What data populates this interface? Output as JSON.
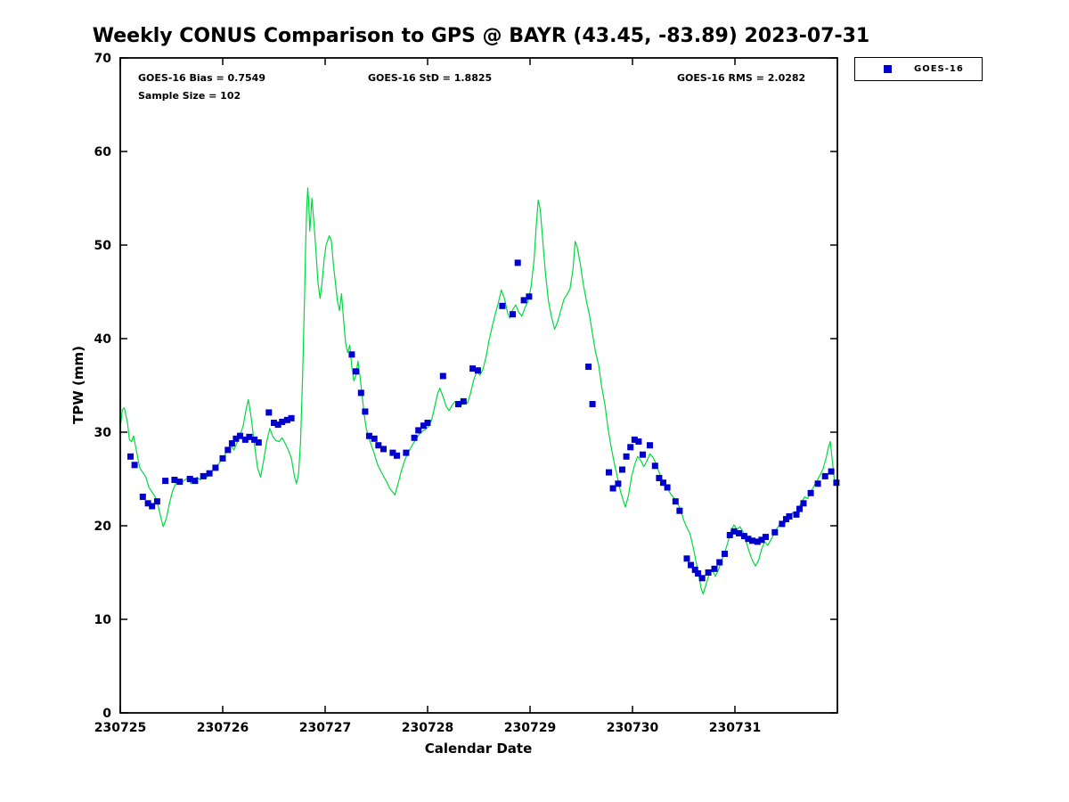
{
  "title": "Weekly CONUS Comparison to GPS @ BAYR (43.45, -83.89) 2023-07-31",
  "stats": {
    "bias": "GOES-16 Bias = 0.7549",
    "std": "GOES-16 StD = 1.8825",
    "rms": "GOES-16 RMS = 2.0282",
    "sample_size": "Sample Size = 102"
  },
  "legend": {
    "entries": [
      {
        "label": "GOES-16",
        "marker": "square",
        "color": "#0000cc"
      }
    ]
  },
  "chart_data": {
    "type": "line",
    "title": "Weekly CONUS Comparison to GPS @ BAYR (43.45, -83.89) 2023-07-31",
    "xlabel": "Calendar Date",
    "ylabel": "TPW (mm)",
    "ylim": [
      0,
      70
    ],
    "yticks": [
      0,
      10,
      20,
      30,
      40,
      50,
      60,
      70
    ],
    "xlim_days": [
      0,
      7
    ],
    "xtick_days": [
      0,
      1,
      2,
      3,
      4,
      5,
      6
    ],
    "xtick_labels": [
      "230725",
      "230726",
      "230727",
      "230728",
      "230729",
      "230730",
      "230731"
    ],
    "grid": false,
    "legend_position": "outside-top-right",
    "series": [
      {
        "name": "GPS",
        "type": "line",
        "color": "#00d940",
        "x_days": [
          0.0,
          0.02,
          0.04,
          0.07,
          0.09,
          0.11,
          0.13,
          0.16,
          0.19,
          0.22,
          0.25,
          0.28,
          0.31,
          0.34,
          0.37,
          0.4,
          0.42,
          0.45,
          0.48,
          0.51,
          0.54,
          0.57,
          0.6,
          0.63,
          0.66,
          0.69,
          0.72,
          0.75,
          0.78,
          0.81,
          0.84,
          0.87,
          0.9,
          0.93,
          0.96,
          0.99,
          1.02,
          1.05,
          1.08,
          1.11,
          1.14,
          1.17,
          1.2,
          1.23,
          1.25,
          1.28,
          1.31,
          1.34,
          1.37,
          1.4,
          1.43,
          1.46,
          1.49,
          1.52,
          1.55,
          1.58,
          1.61,
          1.64,
          1.67,
          1.7,
          1.72,
          1.74,
          1.76,
          1.78,
          1.8,
          1.81,
          1.82,
          1.83,
          1.84,
          1.85,
          1.86,
          1.87,
          1.89,
          1.91,
          1.93,
          1.95,
          1.97,
          1.99,
          2.01,
          2.04,
          2.06,
          2.08,
          2.1,
          2.12,
          2.14,
          2.16,
          2.18,
          2.2,
          2.22,
          2.24,
          2.26,
          2.28,
          2.3,
          2.32,
          2.34,
          2.36,
          2.38,
          2.4,
          2.42,
          2.45,
          2.48,
          2.51,
          2.54,
          2.57,
          2.6,
          2.63,
          2.66,
          2.68,
          2.71,
          2.74,
          2.77,
          2.8,
          2.83,
          2.86,
          2.89,
          2.92,
          2.95,
          2.98,
          3.01,
          3.04,
          3.07,
          3.1,
          3.12,
          3.15,
          3.18,
          3.21,
          3.24,
          3.27,
          3.3,
          3.33,
          3.36,
          3.39,
          3.42,
          3.45,
          3.48,
          3.51,
          3.54,
          3.57,
          3.6,
          3.63,
          3.66,
          3.69,
          3.72,
          3.75,
          3.78,
          3.8,
          3.83,
          3.86,
          3.89,
          3.92,
          3.95,
          3.98,
          4.01,
          4.04,
          4.06,
          4.08,
          4.1,
          4.12,
          4.15,
          4.18,
          4.21,
          4.24,
          4.27,
          4.3,
          4.33,
          4.36,
          4.39,
          4.42,
          4.44,
          4.46,
          4.49,
          4.52,
          4.55,
          4.58,
          4.61,
          4.64,
          4.67,
          4.7,
          4.73,
          4.76,
          4.79,
          4.82,
          4.85,
          4.88,
          4.91,
          4.93,
          4.96,
          4.99,
          5.02,
          5.05,
          5.08,
          5.11,
          5.14,
          5.17,
          5.2,
          5.23,
          5.26,
          5.29,
          5.32,
          5.35,
          5.38,
          5.41,
          5.44,
          5.47,
          5.5,
          5.53,
          5.56,
          5.59,
          5.62,
          5.65,
          5.67,
          5.69,
          5.72,
          5.75,
          5.78,
          5.81,
          5.84,
          5.87,
          5.9,
          5.93,
          5.96,
          5.99,
          6.02,
          6.05,
          6.08,
          6.11,
          6.14,
          6.17,
          6.2,
          6.23,
          6.26,
          6.29,
          6.32,
          6.35,
          6.38,
          6.41,
          6.44,
          6.47,
          6.5,
          6.53,
          6.56,
          6.59,
          6.62,
          6.65,
          6.68,
          6.71,
          6.74,
          6.77,
          6.8,
          6.83,
          6.86,
          6.89,
          6.91,
          6.93,
          6.95,
          6.97,
          6.99,
          7.0
        ],
        "y": [
          30.5,
          32.4,
          32.6,
          31.0,
          29.2,
          29.0,
          29.6,
          27.9,
          26.2,
          25.7,
          25.2,
          24.1,
          23.6,
          23.1,
          22.1,
          20.7,
          19.9,
          20.8,
          22.4,
          23.7,
          24.5,
          24.9,
          24.6,
          24.9,
          25.1,
          24.5,
          24.9,
          25.2,
          24.9,
          25.3,
          25.1,
          25.6,
          25.9,
          26.3,
          26.6,
          27.1,
          27.5,
          28.3,
          28.6,
          28.1,
          28.9,
          29.7,
          30.7,
          32.5,
          33.5,
          31.4,
          28.7,
          26.2,
          25.2,
          27.0,
          29.0,
          30.4,
          29.5,
          29.1,
          29.0,
          29.4,
          28.8,
          28.1,
          27.2,
          25.3,
          24.5,
          25.5,
          29.0,
          36.0,
          45.0,
          50.0,
          54.0,
          56.1,
          54.5,
          51.5,
          53.0,
          55.0,
          52.5,
          49.5,
          46.0,
          44.3,
          46.0,
          48.5,
          50.0,
          51.0,
          50.5,
          48.0,
          46.0,
          44.0,
          43.0,
          44.8,
          42.0,
          39.5,
          38.5,
          39.3,
          37.0,
          35.5,
          36.0,
          37.6,
          36.0,
          34.0,
          32.0,
          30.5,
          29.6,
          28.6,
          27.7,
          26.6,
          25.9,
          25.3,
          24.7,
          24.0,
          23.6,
          23.3,
          24.4,
          25.7,
          26.8,
          27.6,
          28.2,
          28.8,
          29.3,
          29.8,
          30.1,
          30.3,
          30.6,
          31.3,
          32.8,
          34.2,
          34.7,
          33.8,
          32.8,
          32.3,
          32.9,
          33.3,
          32.7,
          32.9,
          33.4,
          33.1,
          34.2,
          35.6,
          36.5,
          36.1,
          36.7,
          38.0,
          39.8,
          41.3,
          42.6,
          43.8,
          45.2,
          44.3,
          42.8,
          42.2,
          43.1,
          43.6,
          42.8,
          42.4,
          43.3,
          44.0,
          45.5,
          48.5,
          52.0,
          54.8,
          53.8,
          51.0,
          47.0,
          44.0,
          42.3,
          41.0,
          41.8,
          43.0,
          44.2,
          44.7,
          45.3,
          47.5,
          50.4,
          49.8,
          48.0,
          45.8,
          44.0,
          42.5,
          40.5,
          38.5,
          37.2,
          34.8,
          33.0,
          30.5,
          28.5,
          26.8,
          25.3,
          23.8,
          22.7,
          22.0,
          23.2,
          25.2,
          26.5,
          27.4,
          27.0,
          26.3,
          26.9,
          27.7,
          27.3,
          26.6,
          25.7,
          24.9,
          24.3,
          23.8,
          23.3,
          22.9,
          22.4,
          21.7,
          20.6,
          19.8,
          19.2,
          17.8,
          16.2,
          14.5,
          13.3,
          12.7,
          13.8,
          14.9,
          15.2,
          14.6,
          15.3,
          16.3,
          17.1,
          18.2,
          19.4,
          20.1,
          19.6,
          19.9,
          19.3,
          18.3,
          17.2,
          16.3,
          15.7,
          16.3,
          17.5,
          18.3,
          17.9,
          18.5,
          19.1,
          19.7,
          20.2,
          19.9,
          20.5,
          20.9,
          21.4,
          21.1,
          21.9,
          22.5,
          23.1,
          22.9,
          23.6,
          24.2,
          24.8,
          25.4,
          26.1,
          27.2,
          28.3,
          29.0,
          27.0,
          25.0,
          24.3,
          24.9
        ]
      },
      {
        "name": "GOES-16",
        "type": "scatter",
        "marker": "square",
        "color": "#0000cc",
        "x_days": [
          0.1,
          0.14,
          0.22,
          0.27,
          0.31,
          0.36,
          0.44,
          0.53,
          0.58,
          0.68,
          0.73,
          0.81,
          0.87,
          0.93,
          1.0,
          1.05,
          1.09,
          1.13,
          1.17,
          1.22,
          1.26,
          1.31,
          1.35,
          1.45,
          1.5,
          1.54,
          1.58,
          1.63,
          1.67,
          2.26,
          2.3,
          2.35,
          2.39,
          2.43,
          2.48,
          2.52,
          2.57,
          2.66,
          2.7,
          2.79,
          2.87,
          2.91,
          2.96,
          3.0,
          3.15,
          3.3,
          3.35,
          3.44,
          3.49,
          3.73,
          3.83,
          3.88,
          3.94,
          3.99,
          4.57,
          4.61,
          4.77,
          4.81,
          4.86,
          4.9,
          4.94,
          4.98,
          5.02,
          5.06,
          5.1,
          5.17,
          5.22,
          5.26,
          5.3,
          5.34,
          5.42,
          5.46,
          5.53,
          5.57,
          5.61,
          5.64,
          5.68,
          5.74,
          5.8,
          5.85,
          5.9,
          5.95,
          5.99,
          6.04,
          6.09,
          6.13,
          6.17,
          6.22,
          6.26,
          6.3,
          6.39,
          6.46,
          6.5,
          6.53,
          6.6,
          6.63,
          6.67,
          6.74,
          6.81,
          6.88,
          6.94,
          6.99
        ],
        "y": [
          27.4,
          26.5,
          23.1,
          22.4,
          22.1,
          22.6,
          24.8,
          24.9,
          24.7,
          25.0,
          24.8,
          25.3,
          25.6,
          26.2,
          27.2,
          28.1,
          28.8,
          29.3,
          29.6,
          29.2,
          29.5,
          29.2,
          28.9,
          32.1,
          31.0,
          30.8,
          31.1,
          31.3,
          31.5,
          38.3,
          36.5,
          34.2,
          32.2,
          29.6,
          29.3,
          28.6,
          28.2,
          27.8,
          27.5,
          27.8,
          29.4,
          30.2,
          30.7,
          31.0,
          36.0,
          33.0,
          33.3,
          36.8,
          36.6,
          43.5,
          42.6,
          48.1,
          44.1,
          44.5,
          37.0,
          33.0,
          25.7,
          24.0,
          24.5,
          26.0,
          27.4,
          28.4,
          29.2,
          29.0,
          27.6,
          28.6,
          26.4,
          25.1,
          24.6,
          24.1,
          22.6,
          21.6,
          16.5,
          15.8,
          15.3,
          14.9,
          14.4,
          15.0,
          15.4,
          16.1,
          17.0,
          19.0,
          19.4,
          19.2,
          18.9,
          18.6,
          18.4,
          18.3,
          18.5,
          18.8,
          19.3,
          20.2,
          20.7,
          21.0,
          21.2,
          21.8,
          22.4,
          23.5,
          24.5,
          25.3,
          25.8,
          24.6
        ]
      }
    ]
  }
}
